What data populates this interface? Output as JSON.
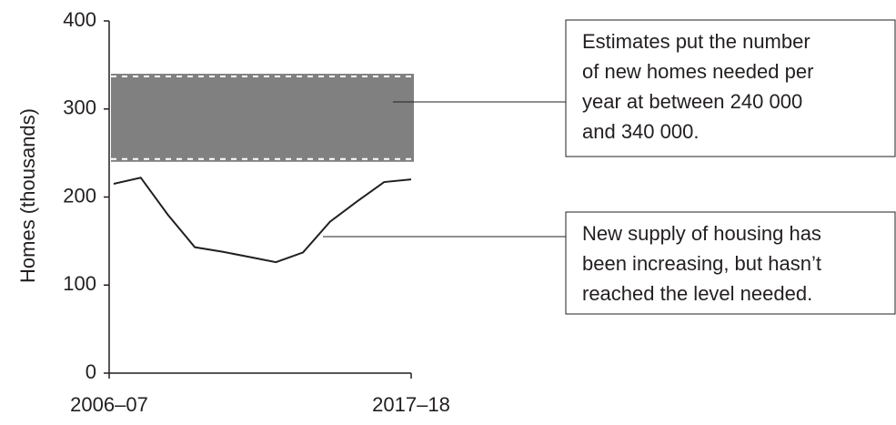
{
  "chart_data": {
    "type": "line",
    "y_label": "Homes (thousands)",
    "categories": [
      "2006–07",
      null,
      null,
      null,
      null,
      null,
      null,
      null,
      null,
      null,
      null,
      "2017–18"
    ],
    "series": [
      {
        "color": "#231f20",
        "values": [
          215,
          222,
          180,
          143,
          138,
          132,
          126,
          137,
          172,
          195,
          217,
          220
        ]
      }
    ],
    "band": {
      "range": [
        240,
        340
      ],
      "color": "#808080"
    },
    "ylim": [
      0,
      400
    ],
    "yticks": [
      0,
      100,
      200,
      300,
      400
    ],
    "annotations": [
      {
        "lines": [
          "Estimates put the number",
          "of new homes needed per",
          "year at between 240 000",
          "and 340 000."
        ]
      },
      {
        "lines": [
          "New supply of housing has",
          "been increasing, but hasn’t",
          "reached the level needed."
        ]
      }
    ]
  }
}
